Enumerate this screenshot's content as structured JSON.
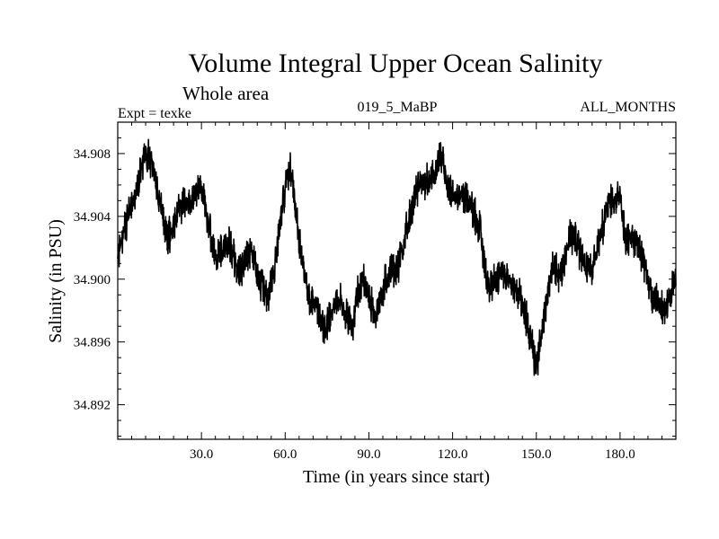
{
  "chart_data": {
    "type": "line",
    "title": "Volume Integral Upper Ocean Salinity",
    "subtitle": "Whole area",
    "experiment": "Expt = texke",
    "run_id": "019_5_MaBP",
    "period": "ALL_MONTHS",
    "xlabel": "Time (in years since start)",
    "ylabel": "Salinity (in PSU)",
    "xlim": [
      0,
      200
    ],
    "ylim": [
      34.8898,
      34.91
    ],
    "xticks": [
      {
        "value": 30,
        "label": "30.0"
      },
      {
        "value": 60,
        "label": "60.0"
      },
      {
        "value": 90,
        "label": "90.0"
      },
      {
        "value": 120,
        "label": "120.0"
      },
      {
        "value": 150,
        "label": "150.0"
      },
      {
        "value": 180,
        "label": "180.0"
      }
    ],
    "yticks": [
      {
        "value": 34.892,
        "label": "34.892"
      },
      {
        "value": 34.896,
        "label": "34.896"
      },
      {
        "value": 34.9,
        "label": "34.900"
      },
      {
        "value": 34.904,
        "label": "34.904"
      },
      {
        "value": 34.908,
        "label": "34.908"
      }
    ],
    "series": [
      {
        "name": "Salinity",
        "color": "#000000",
        "sampling": "monthly",
        "monthly_noise_amplitude": 0.0013,
        "x": [
          0,
          2,
          4,
          6,
          8,
          10,
          12,
          14,
          16,
          18,
          20,
          22,
          24,
          26,
          28,
          30,
          32,
          34,
          36,
          38,
          40,
          42,
          44,
          46,
          48,
          50,
          52,
          54,
          56,
          58,
          60,
          62,
          64,
          66,
          68,
          70,
          72,
          74,
          76,
          78,
          80,
          82,
          84,
          86,
          88,
          90,
          92,
          94,
          96,
          98,
          100,
          102,
          104,
          106,
          108,
          110,
          112,
          114,
          116,
          118,
          120,
          122,
          124,
          126,
          128,
          130,
          132,
          134,
          136,
          138,
          140,
          142,
          144,
          146,
          148,
          150,
          152,
          154,
          156,
          158,
          160,
          162,
          164,
          166,
          168,
          170,
          172,
          174,
          176,
          178,
          180,
          182,
          184,
          186,
          188,
          190,
          192,
          194,
          196,
          198,
          200
        ],
        "y": [
          34.9012,
          34.903,
          34.9042,
          34.905,
          34.9065,
          34.908,
          34.9075,
          34.906,
          34.904,
          34.9025,
          34.9035,
          34.9045,
          34.905,
          34.9052,
          34.9056,
          34.9058,
          34.904,
          34.902,
          34.9015,
          34.902,
          34.9025,
          34.9012,
          34.9005,
          34.9012,
          34.902,
          34.9005,
          34.8995,
          34.899,
          34.9005,
          34.903,
          34.906,
          34.907,
          34.904,
          34.901,
          34.899,
          34.8985,
          34.8978,
          34.8968,
          34.8975,
          34.8988,
          34.899,
          34.8975,
          34.8968,
          34.899,
          34.9,
          34.899,
          34.8975,
          34.8985,
          34.9,
          34.9005,
          34.9005,
          34.902,
          34.9035,
          34.905,
          34.906,
          34.9062,
          34.9065,
          34.907,
          34.9078,
          34.906,
          34.9055,
          34.9052,
          34.9055,
          34.905,
          34.904,
          34.903,
          34.9,
          34.8995,
          34.9002,
          34.9005,
          34.9,
          34.8995,
          34.899,
          34.8978,
          34.8962,
          34.8945,
          34.8965,
          34.8992,
          34.901,
          34.9,
          34.901,
          34.903,
          34.9025,
          34.9015,
          34.901,
          34.9005,
          34.902,
          34.9035,
          34.905,
          34.9045,
          34.9055,
          34.9025,
          34.9025,
          34.9025,
          34.9015,
          34.9,
          34.8985,
          34.8985,
          34.8978,
          34.899,
          34.9
        ]
      }
    ]
  }
}
